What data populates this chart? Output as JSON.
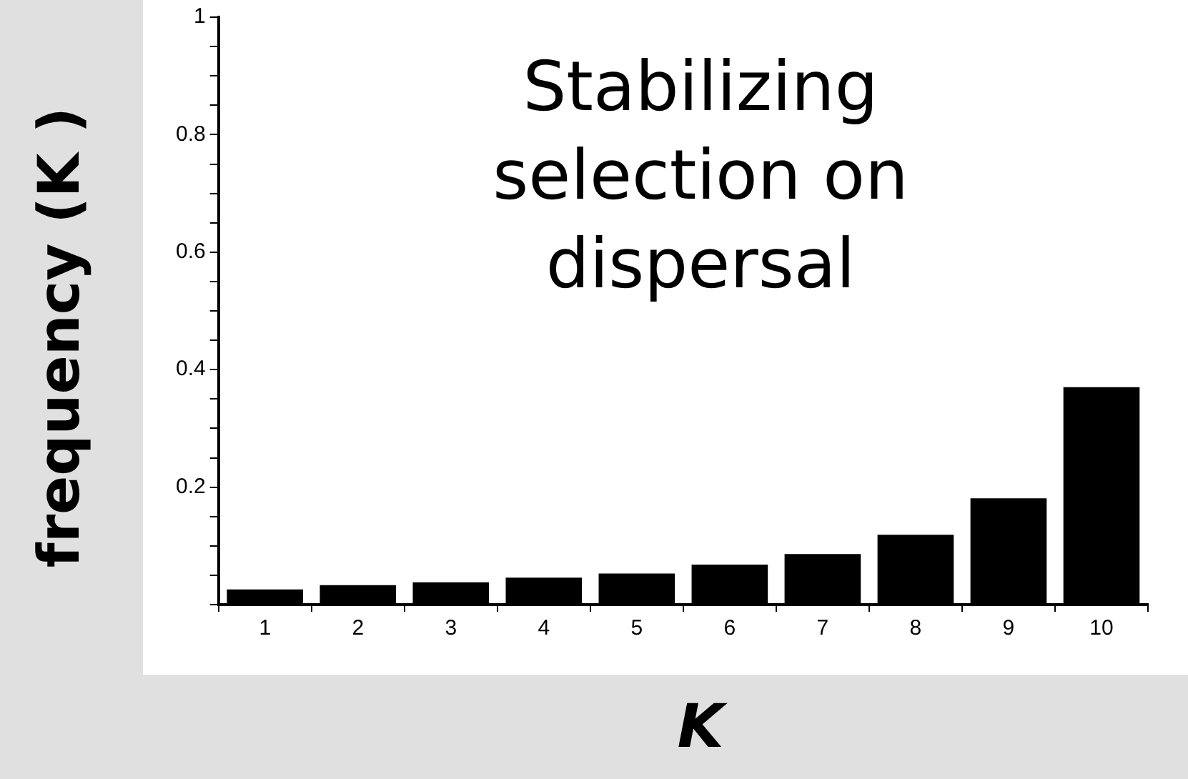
{
  "chart_data": {
    "type": "bar",
    "xlabel": "K",
    "ylabel": "frequency (K )",
    "annotations": [
      "Stabilizing selection on dispersal"
    ],
    "categories": [
      "1",
      "2",
      "3",
      "4",
      "5",
      "6",
      "7",
      "8",
      "9",
      "10"
    ],
    "values": [
      0.026,
      0.033,
      0.038,
      0.046,
      0.053,
      0.068,
      0.086,
      0.119,
      0.181,
      0.37
    ],
    "color": "#000000",
    "ylim": [
      0,
      1
    ],
    "yticks": [
      {
        "value": 0,
        "label": null
      },
      {
        "value": 0.05,
        "label": null
      },
      {
        "value": 0.1,
        "label": null
      },
      {
        "value": 0.15,
        "label": null
      },
      {
        "value": 0.2,
        "label": "0.2"
      },
      {
        "value": 0.25,
        "label": null
      },
      {
        "value": 0.3,
        "label": null
      },
      {
        "value": 0.35,
        "label": null
      },
      {
        "value": 0.4,
        "label": "0.4"
      },
      {
        "value": 0.45,
        "label": null
      },
      {
        "value": 0.5,
        "label": null
      },
      {
        "value": 0.55,
        "label": null
      },
      {
        "value": 0.6,
        "label": "0.6"
      },
      {
        "value": 0.65,
        "label": null
      },
      {
        "value": 0.7,
        "label": null
      },
      {
        "value": 0.75,
        "label": null
      },
      {
        "value": 0.8,
        "label": "0.8"
      },
      {
        "value": 0.85,
        "label": null
      },
      {
        "value": 0.9,
        "label": null
      },
      {
        "value": 0.95,
        "label": null
      },
      {
        "value": 1,
        "label": "1"
      }
    ],
    "grid": false,
    "legend": false
  }
}
